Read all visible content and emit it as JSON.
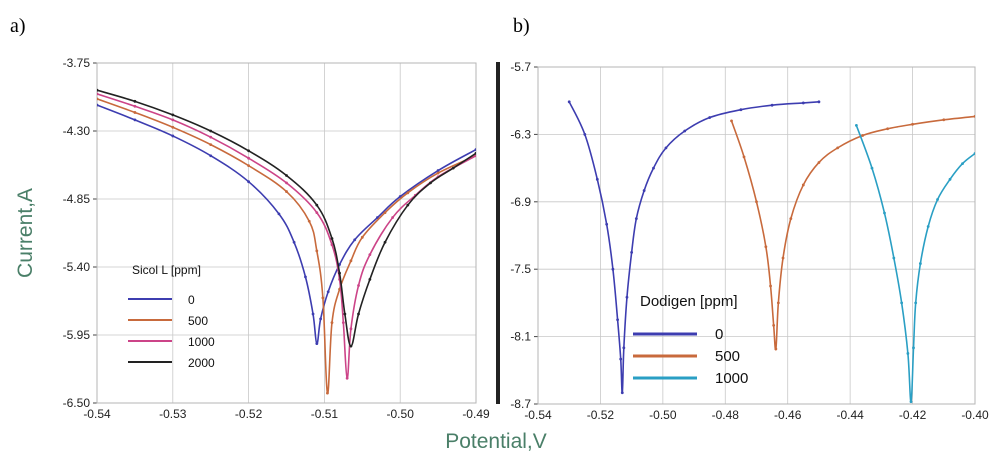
{
  "chart_data": [
    {
      "type": "line",
      "panel_label": "a)",
      "xlabel": "Potential,V",
      "ylabel": "Current,A",
      "xlim": [
        -0.54,
        -0.49
      ],
      "ylim": [
        -6.5,
        -3.75
      ],
      "xticks": [
        "-0.54",
        "-0.53",
        "-0.52",
        "-0.51",
        "-0.50",
        "-0.49"
      ],
      "yticks": [
        "-3.75",
        "-4.30",
        "-4.85",
        "-5.40",
        "-5.95",
        "-6.50"
      ],
      "grid": true,
      "legend_title": "Sicol L [ppm]",
      "legend_position": "lower-left",
      "series": [
        {
          "name": "0",
          "color": "#3d3db0",
          "x": [
            -0.54,
            -0.535,
            -0.53,
            -0.525,
            -0.52,
            -0.516,
            -0.514,
            -0.5125,
            -0.5115,
            -0.511,
            -0.5105,
            -0.5095,
            -0.508,
            -0.506,
            -0.503,
            -0.5,
            -0.495,
            -0.49
          ],
          "y": [
            -4.09,
            -4.21,
            -4.34,
            -4.5,
            -4.71,
            -4.97,
            -5.2,
            -5.48,
            -5.78,
            -6.02,
            -5.82,
            -5.6,
            -5.38,
            -5.18,
            -5.0,
            -4.83,
            -4.62,
            -4.45
          ]
        },
        {
          "name": "500",
          "color": "#c86a3c",
          "x": [
            -0.54,
            -0.535,
            -0.53,
            -0.525,
            -0.52,
            -0.515,
            -0.512,
            -0.511,
            -0.5102,
            -0.5096,
            -0.509,
            -0.508,
            -0.5065,
            -0.505,
            -0.502,
            -0.499,
            -0.495,
            -0.49
          ],
          "y": [
            -4.04,
            -4.15,
            -4.27,
            -4.41,
            -4.58,
            -4.79,
            -5.03,
            -5.27,
            -5.65,
            -6.42,
            -5.85,
            -5.58,
            -5.35,
            -5.16,
            -4.96,
            -4.8,
            -4.64,
            -4.5
          ]
        },
        {
          "name": "1000",
          "color": "#cc4488",
          "x": [
            -0.54,
            -0.535,
            -0.53,
            -0.525,
            -0.52,
            -0.515,
            -0.511,
            -0.509,
            -0.508,
            -0.5075,
            -0.507,
            -0.5065,
            -0.5055,
            -0.504,
            -0.501,
            -0.498,
            -0.495,
            -0.49
          ],
          "y": [
            -4.0,
            -4.1,
            -4.21,
            -4.35,
            -4.52,
            -4.72,
            -4.96,
            -5.22,
            -5.5,
            -5.85,
            -6.3,
            -5.9,
            -5.55,
            -5.3,
            -5.0,
            -4.82,
            -4.67,
            -4.5
          ]
        },
        {
          "name": "2000",
          "color": "#222222",
          "x": [
            -0.54,
            -0.535,
            -0.53,
            -0.525,
            -0.52,
            -0.515,
            -0.511,
            -0.509,
            -0.508,
            -0.5073,
            -0.5065,
            -0.5055,
            -0.504,
            -0.502,
            -0.499,
            -0.496,
            -0.493,
            -0.49
          ],
          "y": [
            -3.97,
            -4.06,
            -4.17,
            -4.3,
            -4.46,
            -4.66,
            -4.9,
            -5.17,
            -5.45,
            -5.78,
            -6.04,
            -5.78,
            -5.5,
            -5.2,
            -4.9,
            -4.72,
            -4.6,
            -4.48
          ]
        }
      ]
    },
    {
      "type": "line",
      "panel_label": "b)",
      "xlim": [
        -0.54,
        -0.4
      ],
      "ylim": [
        -8.7,
        -5.7
      ],
      "xticks": [
        "-0.54",
        "-0.52",
        "-0.50",
        "-0.48",
        "-0.46",
        "-0.44",
        "-0.42",
        "-0.40"
      ],
      "yticks": [
        "-5.7",
        "-6.3",
        "-6.9",
        "-7.5",
        "-8.1",
        "-8.7"
      ],
      "grid": true,
      "legend_title": "Dodigen [ppm]",
      "legend_position": "lower-left",
      "series": [
        {
          "name": "0",
          "color": "#3d3db0",
          "x": [
            -0.53,
            -0.525,
            -0.521,
            -0.518,
            -0.516,
            -0.5145,
            -0.5135,
            -0.513,
            -0.5125,
            -0.5115,
            -0.51,
            -0.5085,
            -0.506,
            -0.503,
            -0.499,
            -0.493,
            -0.485,
            -0.475,
            -0.465,
            -0.455,
            -0.45
          ],
          "y": [
            -6.01,
            -6.3,
            -6.7,
            -7.1,
            -7.5,
            -7.95,
            -8.3,
            -8.6,
            -8.2,
            -7.75,
            -7.35,
            -7.05,
            -6.8,
            -6.6,
            -6.42,
            -6.27,
            -6.15,
            -6.08,
            -6.04,
            -6.02,
            -6.01
          ]
        },
        {
          "name": "500",
          "color": "#c86a3c",
          "x": [
            -0.478,
            -0.474,
            -0.47,
            -0.467,
            -0.4655,
            -0.4645,
            -0.4638,
            -0.463,
            -0.4615,
            -0.459,
            -0.455,
            -0.45,
            -0.444,
            -0.436,
            -0.428,
            -0.42,
            -0.41,
            -0.4
          ],
          "y": [
            -6.18,
            -6.5,
            -6.9,
            -7.3,
            -7.65,
            -8.0,
            -8.21,
            -7.8,
            -7.4,
            -7.05,
            -6.75,
            -6.55,
            -6.42,
            -6.31,
            -6.25,
            -6.21,
            -6.17,
            -6.14
          ]
        },
        {
          "name": "1000",
          "color": "#2a9fc4",
          "x": [
            -0.438,
            -0.433,
            -0.429,
            -0.426,
            -0.4235,
            -0.4215,
            -0.4205,
            -0.4197,
            -0.419,
            -0.4175,
            -0.415,
            -0.412,
            -0.408,
            -0.404,
            -0.4
          ],
          "y": [
            -6.22,
            -6.6,
            -7.0,
            -7.4,
            -7.8,
            -8.25,
            -8.68,
            -8.2,
            -7.8,
            -7.45,
            -7.12,
            -6.88,
            -6.7,
            -6.56,
            -6.47
          ]
        }
      ]
    }
  ]
}
